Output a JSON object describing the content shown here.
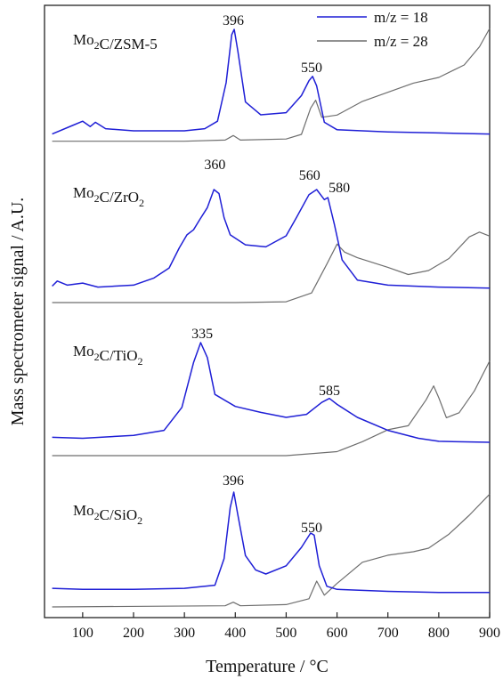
{
  "chart_data": {
    "type": "line",
    "xlabel": "Temperature / °C",
    "ylabel": "Mass spectrometer signal / A.U.",
    "xlim": [
      25,
      900
    ],
    "xticks": [
      100,
      200,
      300,
      400,
      500,
      600,
      700,
      800,
      900
    ],
    "y_tick_labels": false,
    "legend": {
      "position": "top-right",
      "entries": [
        {
          "label": "m/z = 18",
          "color": "#1f1fd6"
        },
        {
          "label": "m/z = 28",
          "color": "#6e6e6e"
        }
      ]
    },
    "series_colors": {
      "m18": "#1f1fd6",
      "m28": "#6e6e6e"
    },
    "panels": [
      {
        "sample": "Mo2C/ZSM-5",
        "label_main": "Mo",
        "label_sub": "2",
        "label_rest": "C/ZSM-5",
        "peak_labels": [
          {
            "x": 396,
            "text": "396"
          },
          {
            "x": 550,
            "text": "550"
          }
        ],
        "series": [
          {
            "name": "m/z = 18",
            "key": "m18",
            "points": [
              [
                40,
                0.02
              ],
              [
                80,
                0.1
              ],
              [
                100,
                0.14
              ],
              [
                115,
                0.09
              ],
              [
                125,
                0.13
              ],
              [
                145,
                0.07
              ],
              [
                200,
                0.05
              ],
              [
                300,
                0.05
              ],
              [
                340,
                0.07
              ],
              [
                365,
                0.14
              ],
              [
                382,
                0.5
              ],
              [
                393,
                0.95
              ],
              [
                398,
                1.0
              ],
              [
                405,
                0.8
              ],
              [
                420,
                0.32
              ],
              [
                450,
                0.2
              ],
              [
                500,
                0.22
              ],
              [
                530,
                0.38
              ],
              [
                545,
                0.52
              ],
              [
                552,
                0.56
              ],
              [
                560,
                0.47
              ],
              [
                575,
                0.13
              ],
              [
                600,
                0.06
              ],
              [
                700,
                0.04
              ],
              [
                800,
                0.03
              ],
              [
                900,
                0.02
              ]
            ]
          },
          {
            "name": "m/z = 28",
            "key": "m28",
            "points": [
              [
                40,
                0.01
              ],
              [
                300,
                0.01
              ],
              [
                380,
                0.02
              ],
              [
                396,
                0.06
              ],
              [
                410,
                0.02
              ],
              [
                500,
                0.03
              ],
              [
                530,
                0.07
              ],
              [
                548,
                0.3
              ],
              [
                558,
                0.37
              ],
              [
                570,
                0.22
              ],
              [
                600,
                0.24
              ],
              [
                650,
                0.36
              ],
              [
                700,
                0.44
              ],
              [
                750,
                0.52
              ],
              [
                800,
                0.57
              ],
              [
                850,
                0.68
              ],
              [
                880,
                0.84
              ],
              [
                900,
                1.0
              ]
            ]
          }
        ]
      },
      {
        "sample": "Mo2C/ZrO2",
        "label_main": "Mo",
        "label_sub": "2",
        "label_rest": "C/ZrO",
        "label_sub2": "2",
        "peak_labels": [
          {
            "x": 360,
            "text": "360"
          },
          {
            "x": 560,
            "text": "560"
          },
          {
            "x": 580,
            "text": "580"
          }
        ],
        "series": [
          {
            "name": "m/z = 18",
            "key": "m18",
            "points": [
              [
                40,
                0.04
              ],
              [
                50,
                0.09
              ],
              [
                70,
                0.05
              ],
              [
                100,
                0.07
              ],
              [
                130,
                0.03
              ],
              [
                200,
                0.05
              ],
              [
                240,
                0.12
              ],
              [
                270,
                0.22
              ],
              [
                290,
                0.42
              ],
              [
                305,
                0.55
              ],
              [
                318,
                0.6
              ],
              [
                330,
                0.7
              ],
              [
                345,
                0.82
              ],
              [
                358,
                1.0
              ],
              [
                368,
                0.96
              ],
              [
                378,
                0.72
              ],
              [
                390,
                0.55
              ],
              [
                420,
                0.45
              ],
              [
                460,
                0.43
              ],
              [
                500,
                0.54
              ],
              [
                520,
                0.72
              ],
              [
                545,
                0.95
              ],
              [
                560,
                1.0
              ],
              [
                575,
                0.9
              ],
              [
                582,
                0.92
              ],
              [
                595,
                0.65
              ],
              [
                610,
                0.3
              ],
              [
                640,
                0.1
              ],
              [
                700,
                0.05
              ],
              [
                800,
                0.03
              ],
              [
                900,
                0.02
              ]
            ]
          },
          {
            "name": "m/z = 28",
            "key": "m28",
            "points": [
              [
                40,
                0.0
              ],
              [
                400,
                0.0
              ],
              [
                500,
                0.01
              ],
              [
                550,
                0.12
              ],
              [
                580,
                0.48
              ],
              [
                600,
                0.73
              ],
              [
                615,
                0.63
              ],
              [
                640,
                0.56
              ],
              [
                700,
                0.44
              ],
              [
                740,
                0.35
              ],
              [
                780,
                0.4
              ],
              [
                820,
                0.55
              ],
              [
                860,
                0.82
              ],
              [
                880,
                0.88
              ],
              [
                900,
                0.83
              ]
            ]
          }
        ]
      },
      {
        "sample": "Mo2C/TiO2",
        "label_main": "Mo",
        "label_sub": "2",
        "label_rest": "C/TiO",
        "label_sub2": "2",
        "peak_labels": [
          {
            "x": 335,
            "text": "335"
          },
          {
            "x": 585,
            "text": "585"
          }
        ],
        "series": [
          {
            "name": "m/z = 18",
            "key": "m18",
            "points": [
              [
                40,
                0.05
              ],
              [
                100,
                0.04
              ],
              [
                200,
                0.07
              ],
              [
                260,
                0.12
              ],
              [
                295,
                0.35
              ],
              [
                318,
                0.8
              ],
              [
                332,
                1.0
              ],
              [
                345,
                0.85
              ],
              [
                360,
                0.48
              ],
              [
                400,
                0.36
              ],
              [
                450,
                0.3
              ],
              [
                500,
                0.25
              ],
              [
                540,
                0.28
              ],
              [
                570,
                0.4
              ],
              [
                585,
                0.44
              ],
              [
                600,
                0.38
              ],
              [
                640,
                0.25
              ],
              [
                700,
                0.12
              ],
              [
                760,
                0.04
              ],
              [
                800,
                0.01
              ],
              [
                900,
                0.0
              ]
            ]
          },
          {
            "name": "m/z = 28",
            "key": "m28",
            "points": [
              [
                40,
                0.0
              ],
              [
                500,
                0.0
              ],
              [
                600,
                0.04
              ],
              [
                650,
                0.14
              ],
              [
                700,
                0.26
              ],
              [
                740,
                0.3
              ],
              [
                775,
                0.56
              ],
              [
                790,
                0.7
              ],
              [
                800,
                0.58
              ],
              [
                815,
                0.38
              ],
              [
                840,
                0.43
              ],
              [
                870,
                0.65
              ],
              [
                900,
                0.95
              ]
            ]
          }
        ]
      },
      {
        "sample": "Mo2C/SiO2",
        "label_main": "Mo",
        "label_sub": "2",
        "label_rest": "C/SiO",
        "label_sub2": "2",
        "peak_labels": [
          {
            "x": 396,
            "text": "396"
          },
          {
            "x": 550,
            "text": "550"
          }
        ],
        "series": [
          {
            "name": "m/z = 18",
            "key": "m18",
            "points": [
              [
                40,
                0.06
              ],
              [
                100,
                0.05
              ],
              [
                200,
                0.05
              ],
              [
                300,
                0.06
              ],
              [
                360,
                0.09
              ],
              [
                378,
                0.35
              ],
              [
                390,
                0.85
              ],
              [
                397,
                1.0
              ],
              [
                405,
                0.78
              ],
              [
                420,
                0.38
              ],
              [
                440,
                0.24
              ],
              [
                460,
                0.2
              ],
              [
                500,
                0.28
              ],
              [
                530,
                0.46
              ],
              [
                548,
                0.6
              ],
              [
                555,
                0.58
              ],
              [
                565,
                0.28
              ],
              [
                580,
                0.08
              ],
              [
                600,
                0.05
              ],
              [
                700,
                0.03
              ],
              [
                800,
                0.02
              ],
              [
                900,
                0.02
              ]
            ]
          },
          {
            "name": "m/z = 28",
            "key": "m28",
            "points": [
              [
                40,
                0.0
              ],
              [
                380,
                0.01
              ],
              [
                396,
                0.04
              ],
              [
                410,
                0.01
              ],
              [
                500,
                0.02
              ],
              [
                545,
                0.07
              ],
              [
                560,
                0.22
              ],
              [
                575,
                0.1
              ],
              [
                600,
                0.2
              ],
              [
                650,
                0.38
              ],
              [
                700,
                0.44
              ],
              [
                750,
                0.47
              ],
              [
                780,
                0.5
              ],
              [
                820,
                0.62
              ],
              [
                860,
                0.78
              ],
              [
                900,
                0.96
              ]
            ]
          }
        ]
      }
    ]
  }
}
